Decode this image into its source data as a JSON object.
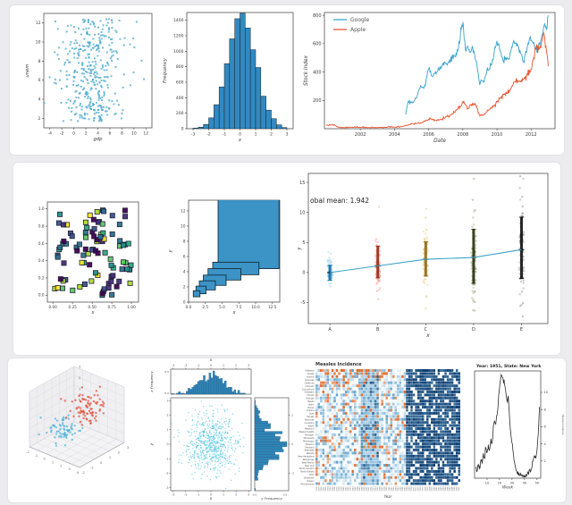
{
  "page": {
    "bg": "#ececee",
    "card_bg": "#ffffff",
    "card_border": "#e2e3e5"
  },
  "chart_data": [
    {
      "id": "gdp-unem",
      "type": "scatter",
      "xlabel": "gdp",
      "ylabel": "unem",
      "xlim": [
        -5,
        13
      ],
      "ylim": [
        1,
        13
      ],
      "xticks": [
        -4,
        -2,
        0,
        2,
        4,
        6,
        8,
        10,
        12
      ],
      "yticks": [
        2,
        4,
        6,
        8,
        10,
        12
      ],
      "n": 390,
      "x_dist": {
        "mean": 3,
        "std": 2.7
      },
      "y_dist": {
        "min": 1.7,
        "max": 12.4,
        "skew": 1.15
      },
      "color": "#56b8dc",
      "edge": "#2f8fb7",
      "seed": 7
    },
    {
      "id": "hist-x",
      "type": "bar",
      "xlabel": "x",
      "ylabel": "Frequency",
      "xlim": [
        -3.4,
        3.4
      ],
      "ylim": [
        0,
        1500
      ],
      "xticks": [
        -3,
        -2,
        -1,
        0,
        1,
        2,
        3
      ],
      "yticks": [
        0,
        200,
        400,
        600,
        800,
        1000,
        1200,
        1400
      ],
      "bin_left": -3.0,
      "bin_width": 0.3333,
      "values": [
        8,
        20,
        55,
        140,
        310,
        540,
        840,
        1160,
        1420,
        1490,
        1300,
        1020,
        790,
        420,
        240,
        130,
        50,
        15
      ],
      "fill": "#3189c2",
      "edge": "#15242e"
    },
    {
      "id": "stock",
      "type": "line",
      "xlabel": "Date",
      "ylabel": "Stock Index",
      "xlim": [
        1999.9,
        2013.4
      ],
      "ylim": [
        0,
        820
      ],
      "xticks": [
        2002,
        2004,
        2006,
        2008,
        2010,
        2012
      ],
      "yticks": [
        200,
        400,
        600,
        800
      ],
      "legend": [
        "Google",
        "Apple"
      ],
      "legend_pos": "upper-left",
      "noise": 9,
      "seed": 21,
      "series": [
        {
          "name": "Google",
          "color": "#36a3cb",
          "points": [
            [
              2004.65,
              100
            ],
            [
              2004.8,
              190
            ],
            [
              2005.0,
              185
            ],
            [
              2005.15,
              195
            ],
            [
              2005.3,
              220
            ],
            [
              2005.45,
              280
            ],
            [
              2005.6,
              290
            ],
            [
              2005.75,
              300
            ],
            [
              2005.9,
              370
            ],
            [
              2006.05,
              430
            ],
            [
              2006.2,
              370
            ],
            [
              2006.35,
              390
            ],
            [
              2006.5,
              400
            ],
            [
              2006.65,
              420
            ],
            [
              2006.8,
              455
            ],
            [
              2006.95,
              470
            ],
            [
              2007.1,
              450
            ],
            [
              2007.25,
              470
            ],
            [
              2007.4,
              520
            ],
            [
              2007.55,
              510
            ],
            [
              2007.7,
              550
            ],
            [
              2007.85,
              630
            ],
            [
              2007.95,
              730
            ],
            [
              2008.05,
              690
            ],
            [
              2008.15,
              560
            ],
            [
              2008.25,
              580
            ],
            [
              2008.4,
              540
            ],
            [
              2008.55,
              580
            ],
            [
              2008.7,
              520
            ],
            [
              2008.85,
              430
            ],
            [
              2009.0,
              310
            ],
            [
              2009.1,
              340
            ],
            [
              2009.25,
              330
            ],
            [
              2009.4,
              400
            ],
            [
              2009.55,
              420
            ],
            [
              2009.7,
              460
            ],
            [
              2009.85,
              550
            ],
            [
              2010.0,
              620
            ],
            [
              2010.1,
              600
            ],
            [
              2010.2,
              550
            ],
            [
              2010.35,
              480
            ],
            [
              2010.5,
              500
            ],
            [
              2010.65,
              490
            ],
            [
              2010.8,
              540
            ],
            [
              2010.95,
              610
            ],
            [
              2011.1,
              600
            ],
            [
              2011.25,
              580
            ],
            [
              2011.4,
              530
            ],
            [
              2011.5,
              480
            ],
            [
              2011.65,
              520
            ],
            [
              2011.8,
              590
            ],
            [
              2011.95,
              650
            ],
            [
              2012.1,
              610
            ],
            [
              2012.25,
              560
            ],
            [
              2012.4,
              580
            ],
            [
              2012.55,
              610
            ],
            [
              2012.7,
              680
            ],
            [
              2012.8,
              740
            ],
            [
              2012.9,
              700
            ],
            [
              2013.0,
              800
            ]
          ]
        },
        {
          "name": "Apple",
          "color": "#e8512d",
          "points": [
            [
              2000.0,
              25
            ],
            [
              2000.3,
              28
            ],
            [
              2000.5,
              25
            ],
            [
              2000.7,
              10
            ],
            [
              2001.0,
              8
            ],
            [
              2001.5,
              10
            ],
            [
              2002.0,
              10
            ],
            [
              2002.5,
              8
            ],
            [
              2003.0,
              8
            ],
            [
              2003.5,
              10
            ],
            [
              2004.0,
              12
            ],
            [
              2004.4,
              14
            ],
            [
              2004.8,
              25
            ],
            [
              2005.0,
              35
            ],
            [
              2005.3,
              38
            ],
            [
              2005.6,
              40
            ],
            [
              2005.9,
              60
            ],
            [
              2006.1,
              70
            ],
            [
              2006.4,
              60
            ],
            [
              2006.7,
              65
            ],
            [
              2007.0,
              85
            ],
            [
              2007.3,
              95
            ],
            [
              2007.6,
              130
            ],
            [
              2007.9,
              160
            ],
            [
              2008.0,
              190
            ],
            [
              2008.15,
              170
            ],
            [
              2008.3,
              140
            ],
            [
              2008.5,
              170
            ],
            [
              2008.65,
              175
            ],
            [
              2008.8,
              160
            ],
            [
              2009.0,
              90
            ],
            [
              2009.2,
              95
            ],
            [
              2009.4,
              120
            ],
            [
              2009.6,
              140
            ],
            [
              2009.8,
              160
            ],
            [
              2010.0,
              190
            ],
            [
              2010.2,
              220
            ],
            [
              2010.4,
              240
            ],
            [
              2010.6,
              250
            ],
            [
              2010.8,
              280
            ],
            [
              2011.0,
              330
            ],
            [
              2011.2,
              340
            ],
            [
              2011.4,
              330
            ],
            [
              2011.6,
              360
            ],
            [
              2011.8,
              380
            ],
            [
              2012.0,
              420
            ],
            [
              2012.15,
              500
            ],
            [
              2012.3,
              580
            ],
            [
              2012.45,
              560
            ],
            [
              2012.6,
              600
            ],
            [
              2012.7,
              660
            ],
            [
              2012.8,
              640
            ],
            [
              2012.9,
              550
            ],
            [
              2013.0,
              440
            ]
          ]
        }
      ]
    },
    {
      "id": "viridis-squares",
      "type": "scatter",
      "marker": "square",
      "xlabel": "x",
      "ylabel": "",
      "xlim": [
        -0.07,
        1.09
      ],
      "ylim": [
        -0.08,
        1.08
      ],
      "xticks": [
        0,
        0.25,
        0.5,
        0.75,
        1.0
      ],
      "xtick_labels": [
        "0.00",
        "0.25",
        "0.50",
        "0.75",
        "1.00"
      ],
      "yticks": [
        0,
        0.2,
        0.4,
        0.6,
        0.8,
        1.0
      ],
      "ytick_labels": [
        "0.0",
        "0.2",
        "0.4",
        "0.6",
        "0.8",
        "1.0"
      ],
      "n": 95,
      "seed": 11,
      "edge": "#16162c",
      "palette": [
        "#440154",
        "#472d7b",
        "#3b528b",
        "#2c728e",
        "#21918c",
        "#28ae80",
        "#5ec962",
        "#addc30",
        "#fde725"
      ]
    },
    {
      "id": "nested-rects",
      "type": "rectangles",
      "xlabel": "x",
      "ylabel": "y",
      "xlim": [
        0,
        13.6
      ],
      "ylim": [
        0,
        13.4
      ],
      "xticks": [
        0,
        2.5,
        5,
        7.5,
        10,
        12.5
      ],
      "xtick_labels": [
        "0.0",
        "2.5",
        "5.0",
        "7.5",
        "10.0",
        "12.5"
      ],
      "yticks": [
        0,
        2,
        4,
        6,
        8,
        10,
        12
      ],
      "fill": "#3b93c6",
      "edge": "#10222c",
      "rects": [
        {
          "x": 0.7,
          "y": 0.7,
          "w": 1.0,
          "h": 0.8
        },
        {
          "x": 1.1,
          "y": 1.1,
          "w": 1.5,
          "h": 1.0
        },
        {
          "x": 1.6,
          "y": 1.6,
          "w": 2.4,
          "h": 1.2
        },
        {
          "x": 2.2,
          "y": 2.2,
          "w": 3.4,
          "h": 1.35
        },
        {
          "x": 2.9,
          "y": 2.9,
          "w": 4.9,
          "h": 1.5
        },
        {
          "x": 3.6,
          "y": 3.6,
          "w": 6.9,
          "h": 1.65
        },
        {
          "x": 4.4,
          "y": 4.4,
          "w": 9.1,
          "h": 9.2
        }
      ]
    },
    {
      "id": "strip",
      "type": "strip",
      "xlabel": "x",
      "ylabel": "y",
      "annotation": "obal mean: 1.942",
      "annotation_y": 11.6,
      "ylim": [
        -8.5,
        16.5
      ],
      "yticks": [
        -5,
        0,
        5,
        10,
        15
      ],
      "categories": [
        "A",
        "B",
        "C",
        "D",
        "E"
      ],
      "means": [
        0,
        1.1,
        2.2,
        2.5,
        3.8
      ],
      "stds": [
        1.1,
        2.1,
        2.9,
        4.1,
        4.6
      ],
      "bars": [
        [
          -1.3,
          1.2
        ],
        [
          -0.9,
          4.4
        ],
        [
          -0.6,
          5.1
        ],
        [
          -1.8,
          7.2
        ],
        [
          -1.0,
          9.2
        ]
      ],
      "colors": [
        "#3fa8dc",
        "#e0472e",
        "#d9a82f",
        "#4a5a20",
        "#333333"
      ],
      "cores": [
        "#1d6fa3",
        "#9c2a16",
        "#8a6a14",
        "#26320e",
        "#111111"
      ],
      "outliers": [
        [],
        [
          -3.1
        ],
        [
          9.1,
          10.6,
          -4.1,
          -6.0
        ],
        [
          15.6,
          12.1,
          10.4,
          -4.6,
          -6.3
        ],
        [
          16.0,
          12.6,
          11.0,
          -3.2,
          -5.1,
          -7.3
        ]
      ],
      "n": 75,
      "seed": 31,
      "line_color": "#3ba3c9"
    },
    {
      "id": "scatter3d",
      "type": "scatter3d",
      "xticks": [
        -2,
        -1,
        0,
        1,
        2,
        3,
        4
      ],
      "yticks": [
        -2,
        -1,
        0,
        1,
        2,
        3
      ],
      "zticks": [
        -2,
        -1,
        0,
        1,
        2,
        3
      ],
      "seed": 41,
      "clusters": [
        {
          "color": "#4fb3d9",
          "n": 70,
          "center": [
            0.6,
            0.3,
            0.33
          ],
          "spread": 0.12
        },
        {
          "color": "#e2523a",
          "n": 85,
          "center": [
            0.38,
            0.62,
            0.66
          ],
          "spread": 0.13
        }
      ]
    },
    {
      "id": "joint",
      "type": "joint",
      "xlabel": "x",
      "ylabel": "y",
      "top_axis_label": "x",
      "top_hist_label": "x Frequency",
      "right_hist_label": "y Frequency",
      "ticks": [
        -3,
        -2,
        -1,
        0,
        1,
        2,
        3
      ],
      "freq_ticks": [
        "0.0",
        "0.5"
      ],
      "n": 650,
      "seed": 55,
      "point_color": "#45c0df",
      "hist_fill": "#2f86b8",
      "hist_edge": "#1b4e70"
    },
    {
      "id": "measles-heatmap",
      "type": "heatmap",
      "title": "Measles Incidence",
      "xlabel": "Year",
      "rows": 38,
      "cols": 64,
      "year_start": 1928,
      "transition_col": 40,
      "dark_band": [
        20,
        27
      ],
      "seed": 99,
      "palette": {
        "zero": "#ffffff",
        "mid": "#7ab3d6",
        "high": "#0a3a6e",
        "accent": "#e06b2d"
      },
      "row_labels": [
        "Alabama",
        "Alaska",
        "Arizona",
        "Arkansas",
        "California",
        "Colorado",
        "Connecticut",
        "Delaware",
        "Florida",
        "Georgia",
        "Hawaii",
        "Idaho",
        "Illinois",
        "Indiana",
        "Iowa",
        "Kansas",
        "Kentucky",
        "Louisiana",
        "Maine",
        "Maryland",
        "Massachusetts",
        "Michigan",
        "Minnesota",
        "Mississippi",
        "Missouri",
        "Montana",
        "Nebraska",
        "Nevada",
        "New Hampshire",
        "New Jersey",
        "New Mexico",
        "New York",
        "North Carolina",
        "North Dakota",
        "Ohio",
        "Oklahoma",
        "Oregon",
        "Pennsylvania"
      ]
    },
    {
      "id": "ny-line",
      "type": "week_line",
      "title": "Year: 1951, State: New York",
      "xlabel": "Week",
      "ylabel": "Measles Incidence",
      "y_axis_side": "right",
      "xlim": [
        0,
        53
      ],
      "ylim": [
        0,
        12.5
      ],
      "xticks": [
        10,
        20,
        30,
        40,
        50
      ],
      "yticks": [
        2,
        4,
        6,
        8,
        10
      ],
      "color": "#2b2b2b",
      "noise": 0.2,
      "seed": 77,
      "values": [
        1.2,
        0.8,
        1.6,
        1.1,
        2.1,
        1.7,
        2.9,
        2.3,
        3.5,
        3.0,
        3.9,
        3.3,
        4.6,
        4.1,
        5.9,
        6.7,
        6.3,
        7.3,
        8.9,
        10.5,
        11.7,
        11.9,
        11.4,
        10.9,
        10.1,
        9.0,
        9.6,
        7.1,
        5.3,
        4.1,
        2.9,
        1.9,
        1.1,
        0.7,
        0.4,
        0.3,
        0.35,
        0.2,
        0.25,
        0.15,
        0.2,
        0.4,
        0.6,
        1.0,
        0.8,
        1.3,
        2.2,
        2.6,
        2.3,
        3.2,
        5.1,
        8.3
      ]
    }
  ]
}
